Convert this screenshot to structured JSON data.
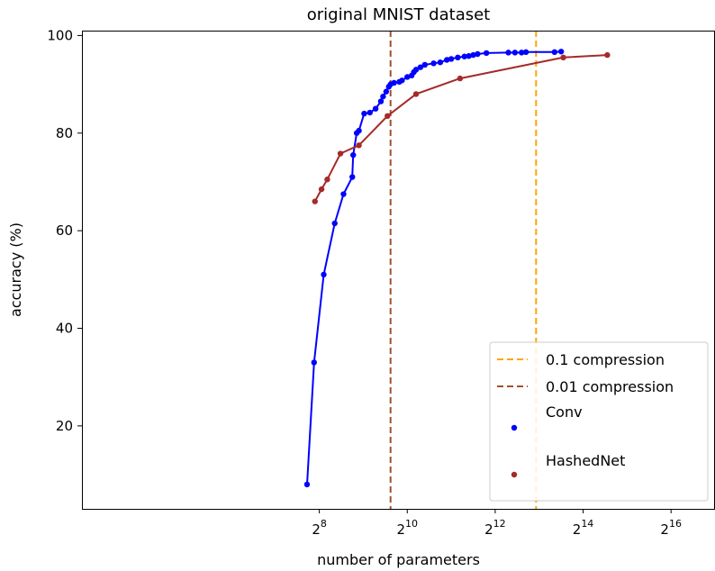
{
  "chart_data": {
    "type": "line",
    "title": "original MNIST dataset",
    "xlabel": "number of parameters",
    "ylabel": "accuracy (%)",
    "xscale": "log2",
    "xlim": [
      2.6,
      17.0
    ],
    "ylim": [
      3.0,
      101.0
    ],
    "x_ticks": [
      {
        "exp": 8,
        "base": "2",
        "sup": "8"
      },
      {
        "exp": 10,
        "base": "2",
        "sup": "10"
      },
      {
        "exp": 12,
        "base": "2",
        "sup": "12"
      },
      {
        "exp": 14,
        "base": "2",
        "sup": "14"
      },
      {
        "exp": 16,
        "base": "2",
        "sup": "16"
      }
    ],
    "y_ticks": [
      20,
      40,
      60,
      80,
      100
    ],
    "grid": false,
    "legend_position": "lower right",
    "vlines": [
      {
        "name": "0.1 compression",
        "x_exp": 12.93,
        "color": "#FFA500",
        "style": "dashed"
      },
      {
        "name": "0.01 compression",
        "x_exp": 9.62,
        "color": "#A0522D",
        "style": "dashed"
      }
    ],
    "series": [
      {
        "name": "Conv",
        "color": "#0000FF",
        "x_exp": [
          7.72,
          7.88,
          8.1,
          8.35,
          8.55,
          8.75,
          8.77,
          8.85,
          8.9,
          9.02,
          9.15,
          9.28,
          9.4,
          9.45,
          9.52,
          9.58,
          9.62,
          9.7,
          9.82,
          9.88,
          10.0,
          10.1,
          10.15,
          10.2,
          10.3,
          10.4,
          10.6,
          10.75,
          10.9,
          11.0,
          11.15,
          11.3,
          11.4,
          11.5,
          11.6,
          11.8,
          12.3,
          12.45,
          12.6,
          12.7,
          13.35,
          13.5
        ],
        "y": [
          8,
          33,
          51,
          61.5,
          67.5,
          71,
          75.5,
          80,
          80.5,
          84,
          84.2,
          85,
          86.5,
          87.5,
          88.5,
          89.5,
          90,
          90.3,
          90.5,
          90.8,
          91.5,
          91.8,
          92.5,
          93,
          93.5,
          94,
          94.3,
          94.5,
          95,
          95.2,
          95.5,
          95.7,
          95.8,
          96,
          96.2,
          96.4,
          96.5,
          96.5,
          96.5,
          96.6,
          96.6,
          96.7
        ]
      },
      {
        "name": "HashedNet",
        "color": "#A52A2A",
        "x_exp": [
          7.9,
          8.05,
          8.18,
          8.48,
          8.9,
          9.55,
          10.2,
          11.2,
          13.55,
          14.55
        ],
        "y": [
          66,
          68.5,
          70.5,
          75.8,
          77.5,
          83.5,
          88,
          91.2,
          95.5,
          96
        ]
      }
    ]
  }
}
